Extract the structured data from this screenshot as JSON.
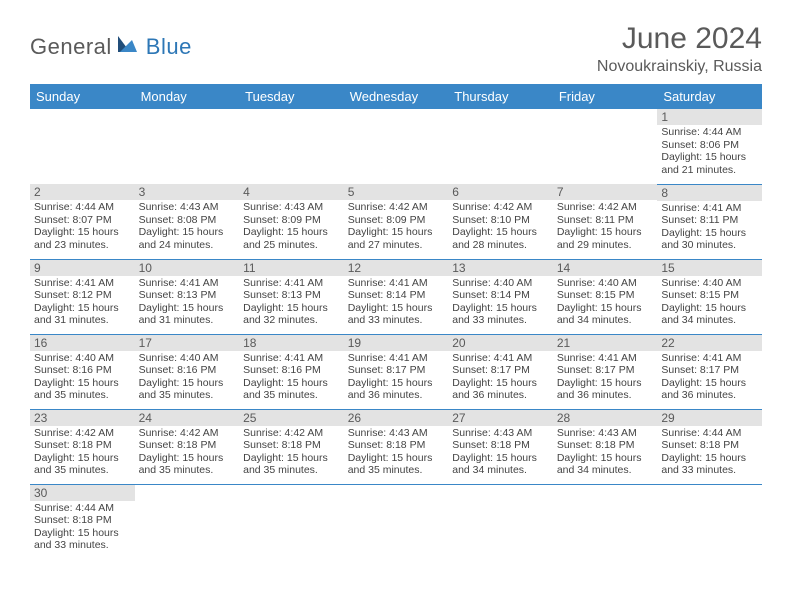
{
  "brand": {
    "part1": "General",
    "part2": "Blue",
    "accent": "#2d77b6",
    "gray": "#5a5a5a"
  },
  "title": "June 2024",
  "location": "Novoukrainskiy, Russia",
  "header_bg": "#3a87c7",
  "daynum_bg": "#e3e3e3",
  "border_color": "#3a87c7",
  "weekdays": [
    "Sunday",
    "Monday",
    "Tuesday",
    "Wednesday",
    "Thursday",
    "Friday",
    "Saturday"
  ],
  "weeks": [
    [
      null,
      null,
      null,
      null,
      null,
      null,
      {
        "n": "1",
        "sr": "Sunrise: 4:44 AM",
        "ss": "Sunset: 8:06 PM",
        "d1": "Daylight: 15 hours",
        "d2": "and 21 minutes."
      }
    ],
    [
      {
        "n": "2",
        "sr": "Sunrise: 4:44 AM",
        "ss": "Sunset: 8:07 PM",
        "d1": "Daylight: 15 hours",
        "d2": "and 23 minutes."
      },
      {
        "n": "3",
        "sr": "Sunrise: 4:43 AM",
        "ss": "Sunset: 8:08 PM",
        "d1": "Daylight: 15 hours",
        "d2": "and 24 minutes."
      },
      {
        "n": "4",
        "sr": "Sunrise: 4:43 AM",
        "ss": "Sunset: 8:09 PM",
        "d1": "Daylight: 15 hours",
        "d2": "and 25 minutes."
      },
      {
        "n": "5",
        "sr": "Sunrise: 4:42 AM",
        "ss": "Sunset: 8:09 PM",
        "d1": "Daylight: 15 hours",
        "d2": "and 27 minutes."
      },
      {
        "n": "6",
        "sr": "Sunrise: 4:42 AM",
        "ss": "Sunset: 8:10 PM",
        "d1": "Daylight: 15 hours",
        "d2": "and 28 minutes."
      },
      {
        "n": "7",
        "sr": "Sunrise: 4:42 AM",
        "ss": "Sunset: 8:11 PM",
        "d1": "Daylight: 15 hours",
        "d2": "and 29 minutes."
      },
      {
        "n": "8",
        "sr": "Sunrise: 4:41 AM",
        "ss": "Sunset: 8:11 PM",
        "d1": "Daylight: 15 hours",
        "d2": "and 30 minutes."
      }
    ],
    [
      {
        "n": "9",
        "sr": "Sunrise: 4:41 AM",
        "ss": "Sunset: 8:12 PM",
        "d1": "Daylight: 15 hours",
        "d2": "and 31 minutes."
      },
      {
        "n": "10",
        "sr": "Sunrise: 4:41 AM",
        "ss": "Sunset: 8:13 PM",
        "d1": "Daylight: 15 hours",
        "d2": "and 31 minutes."
      },
      {
        "n": "11",
        "sr": "Sunrise: 4:41 AM",
        "ss": "Sunset: 8:13 PM",
        "d1": "Daylight: 15 hours",
        "d2": "and 32 minutes."
      },
      {
        "n": "12",
        "sr": "Sunrise: 4:41 AM",
        "ss": "Sunset: 8:14 PM",
        "d1": "Daylight: 15 hours",
        "d2": "and 33 minutes."
      },
      {
        "n": "13",
        "sr": "Sunrise: 4:40 AM",
        "ss": "Sunset: 8:14 PM",
        "d1": "Daylight: 15 hours",
        "d2": "and 33 minutes."
      },
      {
        "n": "14",
        "sr": "Sunrise: 4:40 AM",
        "ss": "Sunset: 8:15 PM",
        "d1": "Daylight: 15 hours",
        "d2": "and 34 minutes."
      },
      {
        "n": "15",
        "sr": "Sunrise: 4:40 AM",
        "ss": "Sunset: 8:15 PM",
        "d1": "Daylight: 15 hours",
        "d2": "and 34 minutes."
      }
    ],
    [
      {
        "n": "16",
        "sr": "Sunrise: 4:40 AM",
        "ss": "Sunset: 8:16 PM",
        "d1": "Daylight: 15 hours",
        "d2": "and 35 minutes."
      },
      {
        "n": "17",
        "sr": "Sunrise: 4:40 AM",
        "ss": "Sunset: 8:16 PM",
        "d1": "Daylight: 15 hours",
        "d2": "and 35 minutes."
      },
      {
        "n": "18",
        "sr": "Sunrise: 4:41 AM",
        "ss": "Sunset: 8:16 PM",
        "d1": "Daylight: 15 hours",
        "d2": "and 35 minutes."
      },
      {
        "n": "19",
        "sr": "Sunrise: 4:41 AM",
        "ss": "Sunset: 8:17 PM",
        "d1": "Daylight: 15 hours",
        "d2": "and 36 minutes."
      },
      {
        "n": "20",
        "sr": "Sunrise: 4:41 AM",
        "ss": "Sunset: 8:17 PM",
        "d1": "Daylight: 15 hours",
        "d2": "and 36 minutes."
      },
      {
        "n": "21",
        "sr": "Sunrise: 4:41 AM",
        "ss": "Sunset: 8:17 PM",
        "d1": "Daylight: 15 hours",
        "d2": "and 36 minutes."
      },
      {
        "n": "22",
        "sr": "Sunrise: 4:41 AM",
        "ss": "Sunset: 8:17 PM",
        "d1": "Daylight: 15 hours",
        "d2": "and 36 minutes."
      }
    ],
    [
      {
        "n": "23",
        "sr": "Sunrise: 4:42 AM",
        "ss": "Sunset: 8:18 PM",
        "d1": "Daylight: 15 hours",
        "d2": "and 35 minutes."
      },
      {
        "n": "24",
        "sr": "Sunrise: 4:42 AM",
        "ss": "Sunset: 8:18 PM",
        "d1": "Daylight: 15 hours",
        "d2": "and 35 minutes."
      },
      {
        "n": "25",
        "sr": "Sunrise: 4:42 AM",
        "ss": "Sunset: 8:18 PM",
        "d1": "Daylight: 15 hours",
        "d2": "and 35 minutes."
      },
      {
        "n": "26",
        "sr": "Sunrise: 4:43 AM",
        "ss": "Sunset: 8:18 PM",
        "d1": "Daylight: 15 hours",
        "d2": "and 35 minutes."
      },
      {
        "n": "27",
        "sr": "Sunrise: 4:43 AM",
        "ss": "Sunset: 8:18 PM",
        "d1": "Daylight: 15 hours",
        "d2": "and 34 minutes."
      },
      {
        "n": "28",
        "sr": "Sunrise: 4:43 AM",
        "ss": "Sunset: 8:18 PM",
        "d1": "Daylight: 15 hours",
        "d2": "and 34 minutes."
      },
      {
        "n": "29",
        "sr": "Sunrise: 4:44 AM",
        "ss": "Sunset: 8:18 PM",
        "d1": "Daylight: 15 hours",
        "d2": "and 33 minutes."
      }
    ],
    [
      {
        "n": "30",
        "sr": "Sunrise: 4:44 AM",
        "ss": "Sunset: 8:18 PM",
        "d1": "Daylight: 15 hours",
        "d2": "and 33 minutes."
      },
      null,
      null,
      null,
      null,
      null,
      null
    ]
  ]
}
